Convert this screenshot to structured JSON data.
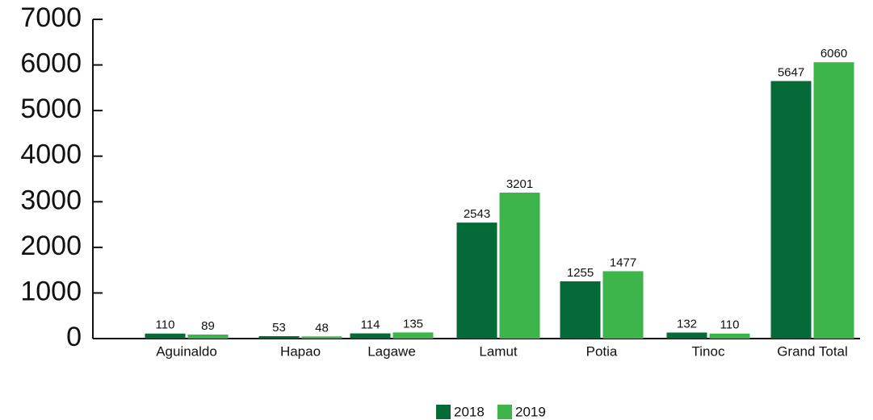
{
  "chart_data": {
    "type": "bar",
    "categories": [
      "Aguinaldo",
      "Hapao",
      "Lagawe",
      "Lamut",
      "Potia",
      "Tinoc",
      "Grand Total"
    ],
    "series": [
      {
        "name": "2018",
        "color": "#046a38",
        "values": [
          110,
          53,
          114,
          2543,
          1255,
          132,
          5647
        ]
      },
      {
        "name": "2019",
        "color": "#3db54a",
        "values": [
          89,
          48,
          135,
          3201,
          1477,
          110,
          6060
        ]
      }
    ],
    "ylim": [
      0,
      7000
    ],
    "yticks": [
      0,
      1000,
      2000,
      3000,
      4000,
      5000,
      6000,
      7000
    ],
    "legend": "bottom"
  }
}
